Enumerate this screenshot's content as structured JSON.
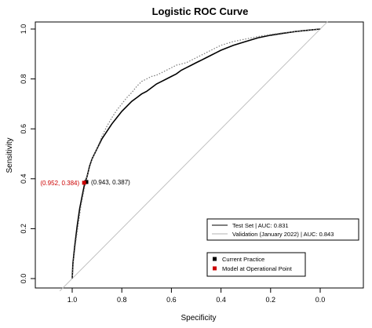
{
  "chart_data": {
    "type": "line",
    "title": "Logistic ROC Curve",
    "xlabel": "Specificity",
    "ylabel": "Sensitivity",
    "xlim": [
      1.0,
      0.0
    ],
    "ylim": [
      0.0,
      1.0
    ],
    "x_ticks": [
      1.0,
      0.8,
      0.6,
      0.4,
      0.2,
      0.0
    ],
    "x_tick_labels": [
      "1.0",
      "0.8",
      "0.6",
      "0.4",
      "0.2",
      "0.0"
    ],
    "y_ticks": [
      0.0,
      0.2,
      0.4,
      0.6,
      0.8,
      1.0
    ],
    "y_tick_labels": [
      "0.0",
      "0.2",
      "0.4",
      "0.6",
      "0.8",
      "1.0"
    ],
    "grid": false,
    "reference_line": {
      "from": [
        1.0,
        0.0
      ],
      "to": [
        0.0,
        1.0
      ],
      "color": "#c0c0c0"
    },
    "series": [
      {
        "name": "Test Set | AUC: 0.831",
        "style": "solid",
        "color": "#000000",
        "x": [
          1.0,
          0.997,
          0.99,
          0.98,
          0.97,
          0.96,
          0.95,
          0.94,
          0.93,
          0.92,
          0.9,
          0.88,
          0.86,
          0.84,
          0.82,
          0.8,
          0.78,
          0.76,
          0.74,
          0.72,
          0.7,
          0.68,
          0.66,
          0.64,
          0.62,
          0.6,
          0.58,
          0.56,
          0.54,
          0.52,
          0.5,
          0.48,
          0.46,
          0.44,
          0.42,
          0.4,
          0.35,
          0.3,
          0.25,
          0.2,
          0.15,
          0.1,
          0.05,
          0.0
        ],
        "y": [
          0.0,
          0.06,
          0.13,
          0.21,
          0.28,
          0.33,
          0.38,
          0.41,
          0.45,
          0.48,
          0.52,
          0.56,
          0.59,
          0.62,
          0.645,
          0.67,
          0.69,
          0.71,
          0.725,
          0.74,
          0.75,
          0.765,
          0.78,
          0.79,
          0.8,
          0.81,
          0.82,
          0.835,
          0.845,
          0.855,
          0.865,
          0.875,
          0.885,
          0.895,
          0.905,
          0.915,
          0.935,
          0.95,
          0.965,
          0.975,
          0.983,
          0.99,
          0.995,
          1.0
        ]
      },
      {
        "name": "Validation (January 2022) | AUC: 0.843",
        "style": "dotted",
        "color": "#7a7a7a",
        "x": [
          1.0,
          0.995,
          0.985,
          0.975,
          0.965,
          0.955,
          0.945,
          0.935,
          0.92,
          0.9,
          0.88,
          0.86,
          0.84,
          0.82,
          0.8,
          0.78,
          0.76,
          0.74,
          0.72,
          0.7,
          0.68,
          0.66,
          0.64,
          0.62,
          0.6,
          0.58,
          0.56,
          0.54,
          0.52,
          0.5,
          0.48,
          0.46,
          0.44,
          0.42,
          0.4,
          0.35,
          0.3,
          0.25,
          0.2,
          0.15,
          0.1,
          0.05,
          0.0
        ],
        "y": [
          0.0,
          0.07,
          0.15,
          0.22,
          0.29,
          0.34,
          0.39,
          0.43,
          0.48,
          0.52,
          0.57,
          0.61,
          0.645,
          0.675,
          0.7,
          0.725,
          0.745,
          0.77,
          0.79,
          0.8,
          0.81,
          0.815,
          0.825,
          0.835,
          0.845,
          0.855,
          0.86,
          0.865,
          0.875,
          0.885,
          0.895,
          0.905,
          0.915,
          0.925,
          0.935,
          0.95,
          0.96,
          0.97,
          0.978,
          0.985,
          0.99,
          0.995,
          1.0
        ]
      }
    ],
    "points": [
      {
        "name": "Current Practice",
        "x": 0.943,
        "y": 0.387,
        "color": "#000000",
        "label": "(0.943, 0.387)",
        "label_side": "right"
      },
      {
        "name": "Model at Operational Point",
        "x": 0.952,
        "y": 0.384,
        "color": "#cc0000",
        "label": "(0.952, 0.384)",
        "label_side": "left"
      }
    ],
    "legends": [
      {
        "placement": "bottom-right",
        "entries": [
          {
            "label": "Test Set | AUC: 0.831",
            "kind": "line",
            "color": "#555555"
          },
          {
            "label": "Validation (January 2022) | AUC: 0.843",
            "kind": "line",
            "color": "#cccccc"
          }
        ]
      },
      {
        "placement": "bottom-right",
        "entries": [
          {
            "label": "Current Practice",
            "kind": "square",
            "color": "#000000"
          },
          {
            "label": "Model at Operational Point",
            "kind": "square",
            "color": "#cc0000"
          }
        ]
      }
    ]
  }
}
